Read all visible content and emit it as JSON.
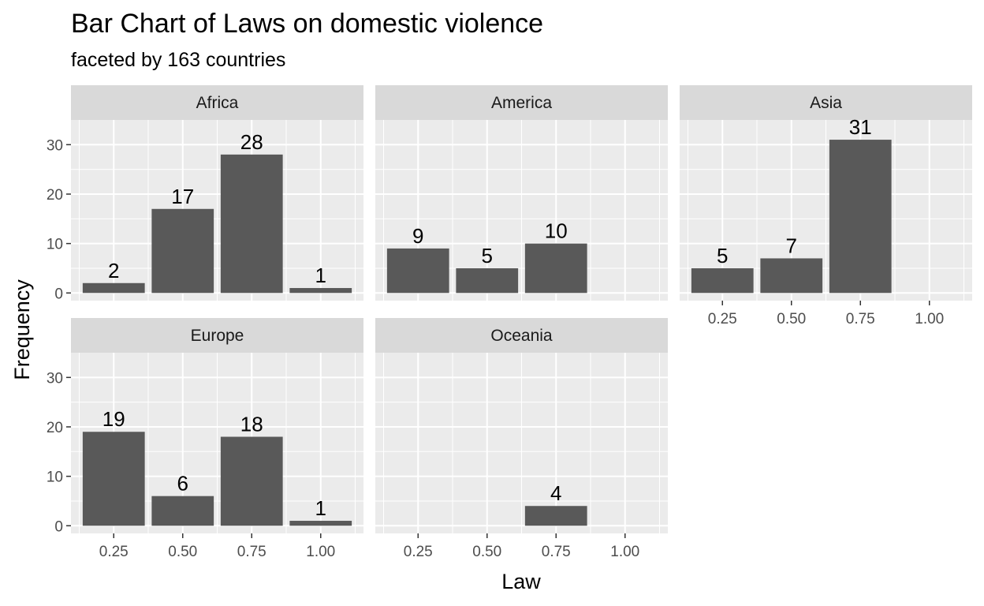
{
  "chart_data": {
    "type": "bar",
    "title": "Bar Chart of Laws on domestic violence",
    "subtitle": "faceted by 163 countries",
    "xlabel": "Law",
    "ylabel": "Frequency",
    "x_ticks": [
      "0.25",
      "0.50",
      "0.75",
      "1.00"
    ],
    "y_ticks": [
      "0",
      "10",
      "20",
      "30"
    ],
    "ylim": [
      0,
      35
    ],
    "x_values": [
      0.25,
      0.5,
      0.75,
      1.0
    ],
    "grid": true,
    "facets": [
      {
        "name": "Africa",
        "values": [
          2,
          17,
          28,
          1
        ],
        "labels": [
          "2",
          "17",
          "28",
          "1"
        ]
      },
      {
        "name": "America",
        "values": [
          9,
          5,
          10,
          0
        ],
        "labels": [
          "9",
          "5",
          "10",
          ""
        ]
      },
      {
        "name": "Asia",
        "values": [
          5,
          7,
          31,
          0
        ],
        "labels": [
          "5",
          "7",
          "31",
          ""
        ]
      },
      {
        "name": "Europe",
        "values": [
          19,
          6,
          18,
          1
        ],
        "labels": [
          "19",
          "6",
          "18",
          "1"
        ]
      },
      {
        "name": "Oceania",
        "values": [
          0,
          0,
          4,
          0
        ],
        "labels": [
          "",
          "",
          "4",
          ""
        ]
      }
    ]
  },
  "colors": {
    "panel_background": "#ebebeb",
    "strip_background": "#d9d9d9",
    "grid_major": "#ffffff",
    "bar_fill": "#595959",
    "tick_color": "#333333"
  }
}
